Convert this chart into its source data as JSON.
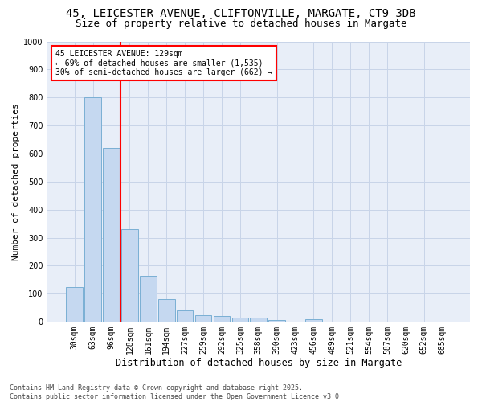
{
  "title1": "45, LEICESTER AVENUE, CLIFTONVILLE, MARGATE, CT9 3DB",
  "title2": "Size of property relative to detached houses in Margate",
  "xlabel": "Distribution of detached houses by size in Margate",
  "ylabel": "Number of detached properties",
  "footer1": "Contains HM Land Registry data © Crown copyright and database right 2025.",
  "footer2": "Contains public sector information licensed under the Open Government Licence v3.0.",
  "bin_labels": [
    "30sqm",
    "63sqm",
    "96sqm",
    "128sqm",
    "161sqm",
    "194sqm",
    "227sqm",
    "259sqm",
    "292sqm",
    "325sqm",
    "358sqm",
    "390sqm",
    "423sqm",
    "456sqm",
    "489sqm",
    "521sqm",
    "554sqm",
    "587sqm",
    "620sqm",
    "652sqm",
    "685sqm"
  ],
  "bar_values": [
    125,
    800,
    620,
    330,
    165,
    80,
    40,
    25,
    22,
    15,
    15,
    5,
    0,
    8,
    0,
    0,
    0,
    0,
    0,
    0,
    0
  ],
  "bar_color": "#c5d8f0",
  "bar_edge_color": "#7aafd4",
  "vline_x_index": 3,
  "vline_color": "red",
  "annotation_line1": "45 LEICESTER AVENUE: 129sqm",
  "annotation_line2": "← 69% of detached houses are smaller (1,535)",
  "annotation_line3": "30% of semi-detached houses are larger (662) →",
  "annotation_box_color": "red",
  "ylim": [
    0,
    1000
  ],
  "yticks": [
    0,
    100,
    200,
    300,
    400,
    500,
    600,
    700,
    800,
    900,
    1000
  ],
  "grid_color": "#c8d4e8",
  "bg_color": "#e8eef8",
  "title1_fontsize": 10,
  "title2_fontsize": 9,
  "xlabel_fontsize": 8.5,
  "ylabel_fontsize": 8,
  "tick_fontsize": 7,
  "annotation_fontsize": 7,
  "footer_fontsize": 6
}
